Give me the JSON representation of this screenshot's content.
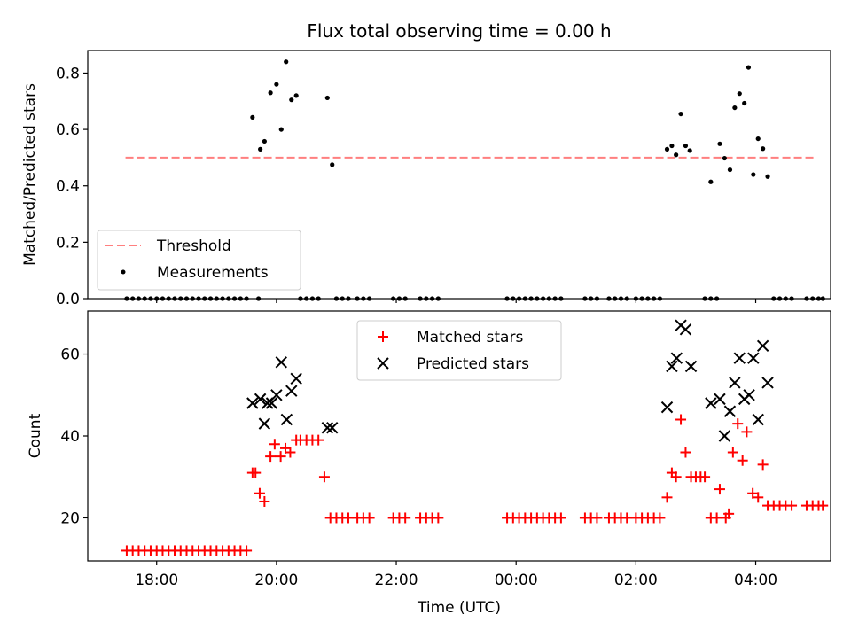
{
  "chart_data": [
    {
      "type": "scatter",
      "title": "Flux total observing time = 0.00 h",
      "xlabel": "",
      "ylabel": "Matched/Predicted stars",
      "xlim": [
        16.85,
        29.25
      ],
      "ylim": [
        0.0,
        0.88
      ],
      "yticks": [
        0.0,
        0.2,
        0.4,
        0.6,
        0.8
      ],
      "ytick_labels": [
        "0.0",
        "0.2",
        "0.4",
        "0.6",
        "0.8"
      ],
      "legend": {
        "position": "lower-left",
        "entries": [
          "Threshold",
          "Measurements"
        ]
      },
      "threshold": {
        "name": "Threshold",
        "value": 0.5,
        "x_range": [
          17.48,
          28.98
        ],
        "color": "#ff7f7f",
        "style": "dashed"
      },
      "series": [
        {
          "name": "Measurements",
          "color": "#000000",
          "marker": "dot",
          "points": [
            [
              17.5,
              0
            ],
            [
              17.6,
              0
            ],
            [
              17.7,
              0
            ],
            [
              17.8,
              0
            ],
            [
              17.9,
              0
            ],
            [
              18.0,
              0
            ],
            [
              18.1,
              0
            ],
            [
              18.2,
              0
            ],
            [
              18.3,
              0
            ],
            [
              18.4,
              0
            ],
            [
              18.5,
              0
            ],
            [
              18.6,
              0
            ],
            [
              18.7,
              0
            ],
            [
              18.8,
              0
            ],
            [
              18.9,
              0
            ],
            [
              19.0,
              0
            ],
            [
              19.1,
              0
            ],
            [
              19.2,
              0
            ],
            [
              19.3,
              0
            ],
            [
              19.4,
              0
            ],
            [
              19.5,
              0
            ],
            [
              19.6,
              0.643
            ],
            [
              19.7,
              0
            ],
            [
              19.73,
              0.53
            ],
            [
              19.8,
              0.558
            ],
            [
              19.9,
              0.73
            ],
            [
              20.0,
              0.76
            ],
            [
              20.08,
              0.6
            ],
            [
              20.16,
              0.84
            ],
            [
              20.25,
              0.705
            ],
            [
              20.33,
              0.72
            ],
            [
              20.4,
              0.0
            ],
            [
              20.4,
              0
            ],
            [
              20.5,
              0
            ],
            [
              20.6,
              0
            ],
            [
              20.7,
              0
            ],
            [
              20.85,
              0.712
            ],
            [
              20.93,
              0.475
            ],
            [
              21.0,
              0
            ],
            [
              21.1,
              0
            ],
            [
              21.2,
              0
            ],
            [
              21.35,
              0
            ],
            [
              21.45,
              0
            ],
            [
              21.55,
              0
            ],
            [
              21.95,
              0
            ],
            [
              22.05,
              0
            ],
            [
              22.15,
              0
            ],
            [
              22.4,
              0
            ],
            [
              22.5,
              0
            ],
            [
              22.6,
              0
            ],
            [
              22.7,
              0
            ],
            [
              23.85,
              0
            ],
            [
              23.95,
              0
            ],
            [
              24.05,
              0
            ],
            [
              24.15,
              0
            ],
            [
              24.25,
              0
            ],
            [
              24.35,
              0
            ],
            [
              24.45,
              0
            ],
            [
              24.55,
              0
            ],
            [
              24.65,
              0
            ],
            [
              24.75,
              0
            ],
            [
              25.15,
              0
            ],
            [
              25.25,
              0
            ],
            [
              25.35,
              0
            ],
            [
              25.55,
              0
            ],
            [
              25.65,
              0
            ],
            [
              25.75,
              0
            ],
            [
              25.85,
              0
            ],
            [
              26.0,
              0
            ],
            [
              26.1,
              0
            ],
            [
              26.2,
              0
            ],
            [
              26.3,
              0
            ],
            [
              26.4,
              0
            ],
            [
              26.52,
              0.53
            ],
            [
              26.6,
              0.542
            ],
            [
              26.67,
              0.51
            ],
            [
              26.75,
              0.655
            ],
            [
              26.83,
              0.542
            ],
            [
              26.9,
              0.525
            ],
            [
              27.15,
              0
            ],
            [
              27.25,
              0
            ],
            [
              27.25,
              0.414
            ],
            [
              27.35,
              0
            ],
            [
              27.4,
              0.549
            ],
            [
              27.48,
              0.498
            ],
            [
              27.57,
              0.457
            ],
            [
              27.65,
              0.677
            ],
            [
              27.73,
              0.727
            ],
            [
              27.81,
              0.693
            ],
            [
              27.88,
              0.82
            ],
            [
              27.96,
              0.44
            ],
            [
              28.04,
              0.567
            ],
            [
              28.12,
              0.532
            ],
            [
              28.2,
              0.433
            ],
            [
              28.3,
              0
            ],
            [
              28.4,
              0
            ],
            [
              28.5,
              0
            ],
            [
              28.6,
              0
            ],
            [
              28.85,
              0
            ],
            [
              28.95,
              0
            ],
            [
              29.05,
              0
            ],
            [
              29.12,
              0
            ]
          ]
        }
      ]
    },
    {
      "type": "scatter",
      "title": "",
      "xlabel": "Time (UTC)",
      "ylabel": "Count",
      "xlim": [
        16.85,
        29.25
      ],
      "ylim": [
        9.5,
        70.5
      ],
      "yticks": [
        20,
        40,
        60
      ],
      "ytick_labels": [
        "20",
        "40",
        "60"
      ],
      "xticks": [
        18,
        20,
        22,
        24,
        26,
        28
      ],
      "xtick_labels": [
        "18:00",
        "20:00",
        "22:00",
        "00:00",
        "02:00",
        "04:00"
      ],
      "legend": {
        "position": "upper-center",
        "entries": [
          "Matched stars",
          "Predicted stars"
        ]
      },
      "series": [
        {
          "name": "Matched stars",
          "color": "#ff0000",
          "marker": "plus",
          "points": [
            [
              17.5,
              12
            ],
            [
              17.6,
              12
            ],
            [
              17.7,
              12
            ],
            [
              17.8,
              12
            ],
            [
              17.9,
              12
            ],
            [
              18.0,
              12
            ],
            [
              18.1,
              12
            ],
            [
              18.2,
              12
            ],
            [
              18.3,
              12
            ],
            [
              18.4,
              12
            ],
            [
              18.5,
              12
            ],
            [
              18.6,
              12
            ],
            [
              18.7,
              12
            ],
            [
              18.8,
              12
            ],
            [
              18.9,
              12
            ],
            [
              19.0,
              12
            ],
            [
              19.1,
              12
            ],
            [
              19.2,
              12
            ],
            [
              19.3,
              12
            ],
            [
              19.4,
              12
            ],
            [
              19.5,
              12
            ],
            [
              19.6,
              31
            ],
            [
              19.65,
              31
            ],
            [
              19.72,
              26
            ],
            [
              19.8,
              24
            ],
            [
              19.9,
              35
            ],
            [
              19.97,
              38
            ],
            [
              20.07,
              35
            ],
            [
              20.15,
              37
            ],
            [
              20.23,
              36
            ],
            [
              20.33,
              39
            ],
            [
              20.4,
              39
            ],
            [
              20.5,
              39
            ],
            [
              20.6,
              39
            ],
            [
              20.7,
              39
            ],
            [
              20.8,
              30
            ],
            [
              20.9,
              20
            ],
            [
              21.0,
              20
            ],
            [
              21.1,
              20
            ],
            [
              21.2,
              20
            ],
            [
              21.35,
              20
            ],
            [
              21.45,
              20
            ],
            [
              21.55,
              20
            ],
            [
              21.95,
              20
            ],
            [
              22.05,
              20
            ],
            [
              22.15,
              20
            ],
            [
              22.4,
              20
            ],
            [
              22.5,
              20
            ],
            [
              22.6,
              20
            ],
            [
              22.7,
              20
            ],
            [
              23.85,
              20
            ],
            [
              23.95,
              20
            ],
            [
              24.05,
              20
            ],
            [
              24.15,
              20
            ],
            [
              24.25,
              20
            ],
            [
              24.35,
              20
            ],
            [
              24.45,
              20
            ],
            [
              24.55,
              20
            ],
            [
              24.65,
              20
            ],
            [
              24.75,
              20
            ],
            [
              25.15,
              20
            ],
            [
              25.25,
              20
            ],
            [
              25.35,
              20
            ],
            [
              25.55,
              20
            ],
            [
              25.65,
              20
            ],
            [
              25.75,
              20
            ],
            [
              25.85,
              20
            ],
            [
              26.0,
              20
            ],
            [
              26.1,
              20
            ],
            [
              26.2,
              20
            ],
            [
              26.3,
              20
            ],
            [
              26.4,
              20
            ],
            [
              26.52,
              25
            ],
            [
              26.6,
              31
            ],
            [
              26.67,
              30
            ],
            [
              26.75,
              44
            ],
            [
              26.83,
              36
            ],
            [
              26.92,
              30
            ],
            [
              27.0,
              30
            ],
            [
              27.08,
              30
            ],
            [
              27.15,
              30
            ],
            [
              27.25,
              20
            ],
            [
              27.35,
              20
            ],
            [
              27.4,
              27
            ],
            [
              27.5,
              20
            ],
            [
              27.55,
              21
            ],
            [
              27.62,
              36
            ],
            [
              27.7,
              43
            ],
            [
              27.78,
              34
            ],
            [
              27.85,
              41
            ],
            [
              27.95,
              26
            ],
            [
              28.04,
              25
            ],
            [
              28.12,
              33
            ],
            [
              28.2,
              23
            ],
            [
              28.3,
              23
            ],
            [
              28.4,
              23
            ],
            [
              28.5,
              23
            ],
            [
              28.6,
              23
            ],
            [
              28.85,
              23
            ],
            [
              28.95,
              23
            ],
            [
              29.05,
              23
            ],
            [
              29.12,
              23
            ]
          ]
        },
        {
          "name": "Predicted stars",
          "color": "#000000",
          "marker": "x",
          "points": [
            [
              19.6,
              48
            ],
            [
              19.73,
              49
            ],
            [
              19.8,
              43
            ],
            [
              19.85,
              48
            ],
            [
              19.92,
              48
            ],
            [
              20.0,
              50
            ],
            [
              20.08,
              58
            ],
            [
              20.17,
              44
            ],
            [
              20.25,
              51
            ],
            [
              20.33,
              54
            ],
            [
              20.85,
              42
            ],
            [
              20.93,
              42
            ],
            [
              26.52,
              47
            ],
            [
              26.6,
              57
            ],
            [
              26.68,
              59
            ],
            [
              26.75,
              67
            ],
            [
              26.83,
              66
            ],
            [
              26.92,
              57
            ],
            [
              27.25,
              48
            ],
            [
              27.4,
              49
            ],
            [
              27.48,
              40
            ],
            [
              27.57,
              46
            ],
            [
              27.65,
              53
            ],
            [
              27.73,
              59
            ],
            [
              27.81,
              49
            ],
            [
              27.89,
              50
            ],
            [
              27.96,
              59
            ],
            [
              28.04,
              44
            ],
            [
              28.12,
              62
            ],
            [
              28.2,
              53
            ]
          ]
        }
      ]
    }
  ]
}
